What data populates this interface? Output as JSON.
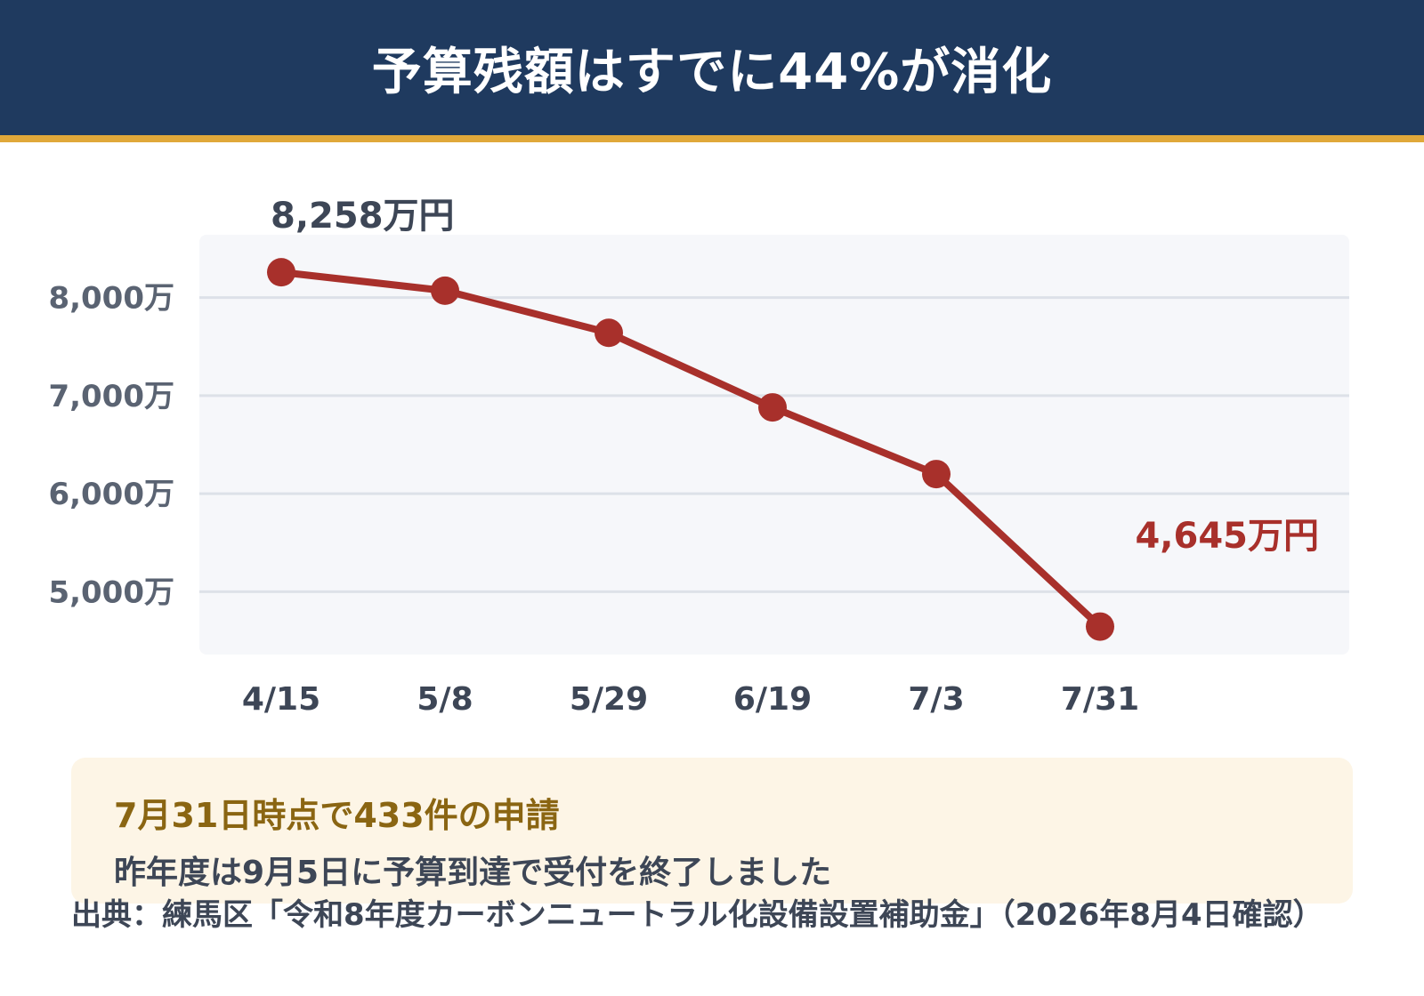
{
  "header": {
    "title": "予算残額はすでに44%が消化",
    "background": "#1f3a5f",
    "accent_rule": "#e0a83a"
  },
  "chart_data": {
    "type": "line",
    "categories": [
      "4/15",
      "5/8",
      "5/29",
      "6/19",
      "7/3",
      "7/31"
    ],
    "values": [
      8258,
      8070,
      7640,
      6880,
      6200,
      4645
    ],
    "y_unit": "万円",
    "ylim": [
      4360,
      8640
    ],
    "yticks": [
      {
        "value": 5000,
        "label": "5,000万"
      },
      {
        "value": 6000,
        "label": "6,000万"
      },
      {
        "value": 7000,
        "label": "7,000万"
      },
      {
        "value": 8000,
        "label": "8,000万"
      }
    ],
    "data_labels": [
      {
        "index": 0,
        "text": "8,258万円",
        "color": "#3d4656"
      },
      {
        "index": 5,
        "text": "4,645万円",
        "color": "#a8302b"
      }
    ],
    "grid": true,
    "line_color": "#a8302b",
    "plot_background": "#f6f7fa",
    "grid_color": "#dde1e8",
    "title": "",
    "xlabel": "",
    "ylabel": ""
  },
  "note": {
    "headline": "7月31日時点で433件の申請",
    "subtext": "昨年度は9月5日に予算到達で受付を終了しました",
    "headline_color": "#8a6512",
    "background": "#fdf5e6"
  },
  "source": {
    "text": "出典：練馬区「令和8年度カーボンニュートラル化設備設置補助金」（2026年8月4日確認）"
  }
}
